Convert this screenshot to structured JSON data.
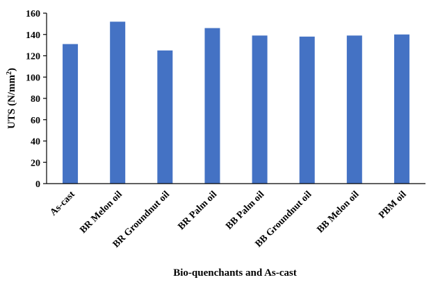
{
  "chart_data": {
    "type": "bar",
    "categories": [
      "As-cast",
      "BR Melon oil",
      "BR Groundnut oil",
      "BR Palm oil",
      "BB Palm oil",
      "BB Groundnut oil",
      "BB Melon oil",
      "PBM oil"
    ],
    "values": [
      131,
      152,
      125,
      146,
      139,
      138,
      139,
      140
    ],
    "xlabel": "Bio-quenchants and As-cast",
    "ylabel_main": "UTS (N/mm",
    "ylabel_sup": "2",
    "ylabel_tail": ")",
    "ylim": [
      0,
      160
    ],
    "yticks": [
      0,
      20,
      40,
      60,
      80,
      100,
      120,
      140,
      160
    ],
    "grid": false,
    "legend": "none",
    "bar_color": "#4472C4"
  }
}
